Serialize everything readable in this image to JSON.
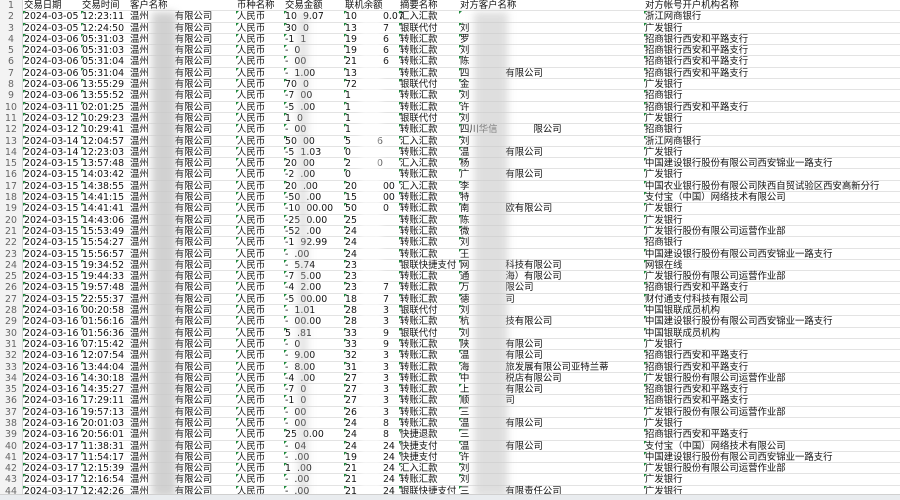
{
  "header": [
    "交易日期",
    "交易时间",
    "客户名称",
    "币种名称",
    "交易金额",
    "联机余额",
    "摘要名称",
    "对方客户名称",
    "对方帐号开户机构名称"
  ],
  "customer_visible": {
    "prefix": "温州",
    "suffix": "有限公司"
  },
  "currency": "人民币",
  "rows": [
    [
      "2",
      "2024-03-05",
      "12:23:11",
      "10",
      "9.07",
      "10",
      "0.07",
      "汇入汇款",
      "",
      "",
      "浙江网商银行"
    ],
    [
      "3",
      "2024-03-05",
      "12:24:50",
      "30",
      "0",
      "13",
      "7",
      "银联代付",
      "刘",
      "",
      "广发银行"
    ],
    [
      "4",
      "2024-03-06",
      "05:31:03",
      "-1",
      "1",
      "19",
      "6",
      "转账汇款",
      "罗",
      "",
      "招商银行西安和平路支行"
    ],
    [
      "5",
      "2024-03-06",
      "05:31:03",
      "-",
      "0",
      "19",
      "6",
      "转账汇款",
      "刘",
      "",
      "招商银行西安和平路支行"
    ],
    [
      "6",
      "2024-03-06",
      "05:31:04",
      "-",
      "00",
      "21",
      "6",
      "转账汇款",
      "陈",
      "",
      "招商银行西安和平路支行"
    ],
    [
      "7",
      "2024-03-06",
      "05:31:04",
      "-",
      "1.00",
      "13",
      "",
      "转账汇款",
      "四",
      "有限公司",
      "招商银行西安和平路支行"
    ],
    [
      "8",
      "2024-03-06",
      "13:55:29",
      "70",
      "0",
      "72",
      "",
      "银联代付",
      "金",
      "",
      "广发银行"
    ],
    [
      "9",
      "2024-03-06",
      "13:55:52",
      "-7",
      "00",
      "1",
      "",
      "转账汇款",
      "刘",
      "",
      "招商银行"
    ],
    [
      "10",
      "2024-03-11",
      "02:01:25",
      "-5",
      ".00",
      "1",
      "",
      "转账汇款",
      "许",
      "",
      "招商银行西安和平路支行"
    ],
    [
      "11",
      "2024-03-12",
      "10:29:23",
      "1",
      "0",
      "1",
      "",
      "银联代付",
      "刘",
      "",
      "广发银行"
    ],
    [
      "12",
      "2024-03-12",
      "10:29:41",
      "-",
      "00",
      "1",
      "",
      "转账汇款",
      "四川华信",
      "限公司",
      "招商银行"
    ],
    [
      "13",
      "2024-03-14",
      "12:04:57",
      "50",
      "00",
      "5",
      "6",
      "汇入汇款",
      "刘",
      "",
      "浙江网商银行"
    ],
    [
      "14",
      "2024-03-14",
      "12:23:03",
      "-5",
      "1.03",
      "0",
      "",
      "转账汇款",
      "温",
      "有限公司",
      "广发银行"
    ],
    [
      "15",
      "2024-03-15",
      "13:57:48",
      "20",
      "00",
      "2",
      "0",
      "汇入汇款",
      "杨",
      "",
      "中国建设银行股份有限公司西安锦业一路支行"
    ],
    [
      "16",
      "2024-03-15",
      "14:03:42",
      "-2",
      ".00",
      "0",
      "",
      "转账汇款",
      "广",
      "有限公司",
      "广发银行"
    ],
    [
      "17",
      "2024-03-15",
      "14:38:55",
      "20",
      ".00",
      "20",
      "00",
      "汇入汇款",
      "李",
      "",
      "中国农业银行股份有限公司陕西自贸试验区西安高新分行"
    ],
    [
      "18",
      "2024-03-15",
      "14:41:15",
      "-50",
      ".00",
      "15",
      "00",
      "转账汇款",
      "特",
      "",
      "支付宝（中国）网络技术有限公司"
    ],
    [
      "19",
      "2024-03-15",
      "14:41:41",
      "-10",
      "00.00",
      "50",
      "0",
      "转账汇款",
      "南",
      "欧有限公司",
      "广发银行"
    ],
    [
      "20",
      "2024-03-15",
      "14:43:06",
      "-25",
      "0.00",
      "25",
      "",
      "转账汇款",
      "陈",
      "",
      "广发银行"
    ],
    [
      "21",
      "2024-03-15",
      "15:53:49",
      "-52",
      ".00",
      "24",
      "",
      "转账汇款",
      "微",
      "",
      "广发银行股份有限公司运营作业部"
    ],
    [
      "22",
      "2024-03-15",
      "15:54:27",
      "-1",
      "92.99",
      "24",
      "",
      "转账汇款",
      "刘",
      "",
      "招商银行"
    ],
    [
      "23",
      "2024-03-15",
      "15:56:57",
      "-",
      ".00",
      "24",
      "",
      "转账汇款",
      "王",
      "",
      "中国建设银行股份有限公司西安锦业一路支行"
    ],
    [
      "24",
      "2024-03-15",
      "19:34:52",
      "-",
      "5.74",
      "23",
      "",
      "银联快捷支付",
      "网",
      "科技有限公司",
      "网银在线"
    ],
    [
      "25",
      "2024-03-15",
      "19:44:33",
      "-7",
      "5.00",
      "23",
      "",
      "转账汇款",
      "通",
      "海）有限公司",
      "广发银行股份有限公司运营作业部"
    ],
    [
      "26",
      "2024-03-15",
      "19:57:48",
      "-4",
      "2.00",
      "23",
      "7",
      "转账汇款",
      "万",
      "限公司",
      "招商银行西安和平路支行"
    ],
    [
      "27",
      "2024-03-15",
      "22:55:37",
      "-5",
      "00.00",
      "18",
      "7",
      "转账汇款",
      "德",
      "司",
      "财付通支付科技有限公司"
    ],
    [
      "28",
      "2024-03-16",
      "00:20:58",
      "-",
      "1.01",
      "28",
      "3",
      "银联代付",
      "刘",
      "",
      "中国银联成员机构"
    ],
    [
      "29",
      "2024-03-16",
      "01:56:16",
      "-",
      "00.00",
      "28",
      "3",
      "转账汇款",
      "杭",
      "技有限公司",
      "中国建设银行股份有限公司西安锦业一路支行"
    ],
    [
      "30",
      "2024-03-16",
      "01:56:36",
      "5",
      ".81",
      "33",
      "9",
      "银联代付",
      "刘",
      "",
      "中国银联成员机构"
    ],
    [
      "31",
      "2024-03-16",
      "07:15:42",
      "-",
      "0",
      "33",
      "9",
      "转账汇款",
      "陕",
      "有限公司",
      "广发银行"
    ],
    [
      "32",
      "2024-03-16",
      "12:07:54",
      "-",
      "9.00",
      "32",
      "3",
      "转账汇款",
      "温",
      "有限公司",
      "招商银行西安和平路支行"
    ],
    [
      "33",
      "2024-03-16",
      "13:44:04",
      "-",
      "8.00",
      "31",
      "3",
      "转账汇款",
      "海",
      "旅发展有限公司亚特兰蒂",
      "招商银行西安和平路支行"
    ],
    [
      "34",
      "2024-03-16",
      "14:30:18",
      "-4",
      ".00",
      "27",
      "3",
      "转账汇款",
      "中",
      "税店有限公司",
      "广发银行股份有限公司运营作业部"
    ],
    [
      "35",
      "2024-03-16",
      "14:35:27",
      "-7",
      "0",
      "27",
      "3",
      "转账汇款",
      "上",
      "有限公司",
      "招商银行西安和平路支行"
    ],
    [
      "36",
      "2024-03-16",
      "17:29:11",
      "-1",
      "0",
      "27",
      "3",
      "转账汇款",
      "顺",
      "司",
      "招商银行西安和平路支行"
    ],
    [
      "37",
      "2024-03-16",
      "19:57:13",
      "-",
      "00",
      "26",
      "3",
      "转账汇款",
      "三",
      "",
      "广发银行股份有限公司运营作业部"
    ],
    [
      "38",
      "2024-03-16",
      "20:01:03",
      "-",
      "00",
      "24",
      "8",
      "转账汇款",
      "温",
      "有限公司",
      "广发银行"
    ],
    [
      "39",
      "2024-03-16",
      "20:56:01",
      "25",
      "0.00",
      "24",
      "8",
      "快捷退款",
      "三",
      "",
      "招商银行西安和平路支行"
    ],
    [
      "40",
      "2024-03-17",
      "11:38:31",
      "-",
      "04",
      "24",
      "24",
      "快捷支付",
      "温",
      "有限公司",
      "支付宝（中国）网络技术有限公司"
    ],
    [
      "41",
      "2024-03-17",
      "11:54:17",
      "-",
      ".00",
      "19",
      "24",
      "快捷支付",
      "许",
      "",
      "中国建设银行股份有限公司西安锦业一路支行"
    ],
    [
      "42",
      "2024-03-17",
      "12:15:39",
      "1",
      ".00",
      "21",
      "24",
      "汇入汇款",
      "刘",
      "",
      "广发银行股份有限公司运营作业部"
    ],
    [
      "43",
      "2024-03-17",
      "12:16:54",
      "-",
      ".00",
      "21",
      "24",
      "转账汇款",
      "刘",
      "",
      "广发银行"
    ],
    [
      "44",
      "2024-03-17",
      "12:42:26",
      "-",
      ".00",
      "21",
      "24",
      "银联快捷支付",
      "三",
      "有限责任公司",
      "广发银行"
    ]
  ],
  "colors": {
    "marker": "#1e8a3c",
    "grid": "#e3e3e3"
  }
}
